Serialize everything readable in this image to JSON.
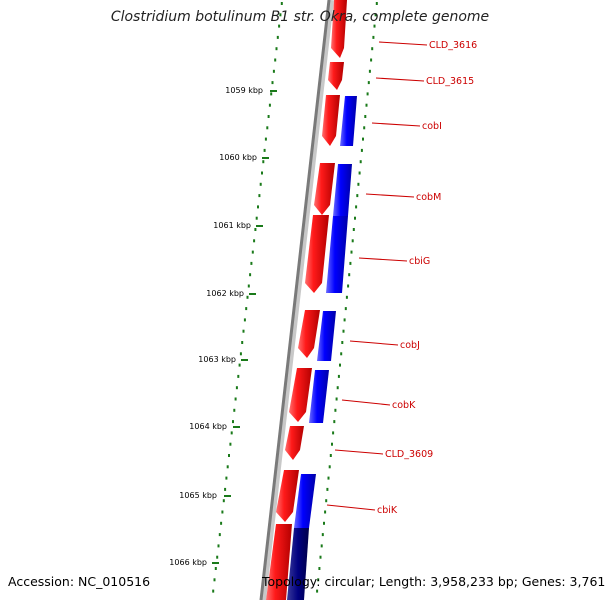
{
  "title": "Clostridium botulinum B1 str. Okra, complete genome",
  "footer": {
    "accession": "Accession: NC_010516",
    "summary": "Topology: circular; Length: 3,958,233 bp; Genes: 3,761"
  },
  "ruler_labels": [
    "1059 kbp",
    "1060 kbp",
    "1061 kbp",
    "1062 kbp",
    "1063 kbp",
    "1064 kbp",
    "1065 kbp",
    "1066 kbp"
  ],
  "genes": [
    {
      "name": "CLD_3616"
    },
    {
      "name": "CLD_3615"
    },
    {
      "name": "cobI"
    },
    {
      "name": "cobM"
    },
    {
      "name": "cbiG"
    },
    {
      "name": "cobJ"
    },
    {
      "name": "cobK"
    },
    {
      "name": "CLD_3609"
    },
    {
      "name": "cbiK"
    }
  ],
  "colors": {
    "forward_strand": "#e60000",
    "cog_feature": "#0000ee",
    "cog_feature_dark": "#000080",
    "ruler_tick": "#1a7a1a",
    "backbone": "#8a8a8a",
    "label": "#cc0000"
  }
}
